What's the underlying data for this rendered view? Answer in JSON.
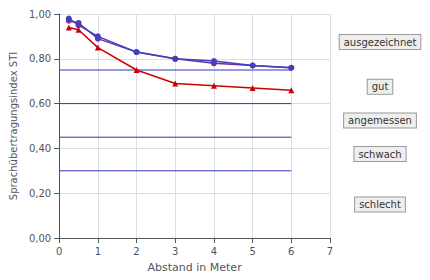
{
  "chart_data": {
    "type": "line",
    "xlabel": "Abstand in Meter",
    "ylabel": "Sprachübertragungsindex STI",
    "x": [
      0.25,
      0.5,
      1,
      2,
      3,
      4,
      5,
      6
    ],
    "series": [
      {
        "color": "#7030A0",
        "marker": "circle",
        "values": [
          0.97,
          0.96,
          0.89,
          0.83,
          0.8,
          0.78,
          0.77,
          0.76
        ]
      },
      {
        "color": "#4040C0",
        "marker": "circle",
        "values": [
          0.98,
          0.95,
          0.9,
          0.83,
          0.8,
          0.79,
          0.77,
          0.76
        ]
      },
      {
        "color": "#CC0000",
        "marker": "triangle",
        "values": [
          0.94,
          0.93,
          0.85,
          0.75,
          0.69,
          0.68,
          0.67,
          0.66
        ]
      }
    ],
    "hlines": [
      {
        "y": 0.75,
        "color": "#3333BB"
      },
      {
        "y": 0.6,
        "color": "#3333BB"
      },
      {
        "y": 0.45,
        "color": "#3333BB"
      },
      {
        "y": 0.3,
        "color": "#3333BB"
      }
    ],
    "annotations": [
      "ausgezeichnet",
      "gut",
      "angemessen",
      "schwach",
      "schlecht"
    ],
    "xlim": [
      0,
      7
    ],
    "ylim": [
      0.0,
      1.0
    ],
    "xticks": [
      0,
      1,
      2,
      3,
      4,
      5,
      6,
      7
    ],
    "yticks": [
      {
        "value": 0.0,
        "label": "0,00"
      },
      {
        "value": 0.2,
        "label": "0,20"
      },
      {
        "value": 0.4,
        "label": "0,40"
      },
      {
        "value": 0.6,
        "label": "0,60"
      },
      {
        "value": 0.8,
        "label": "0,80"
      },
      {
        "value": 1.0,
        "label": "1,00"
      }
    ],
    "grid": true
  }
}
